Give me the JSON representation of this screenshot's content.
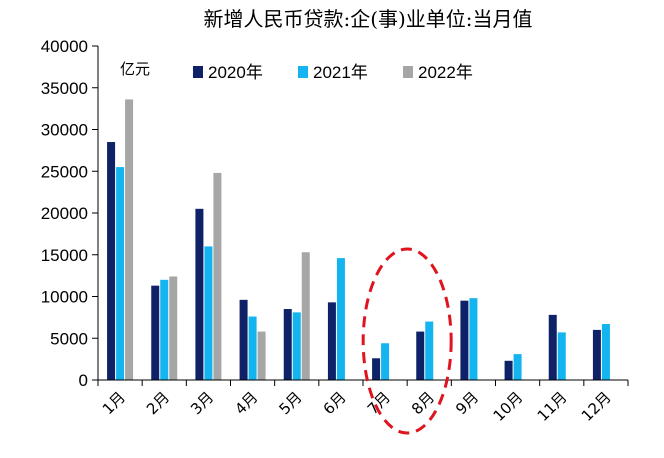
{
  "chart_data": {
    "type": "bar",
    "title": "新增人民币贷款:企(事)业单位:当月值",
    "unit_label": "亿元",
    "categories": [
      "1月",
      "2月",
      "3月",
      "4月",
      "5月",
      "6月",
      "7月",
      "8月",
      "9月",
      "10月",
      "11月",
      "12月"
    ],
    "series": [
      {
        "name": "2020年",
        "color": "#0f2167",
        "values": [
          28500,
          11300,
          20500,
          9600,
          8500,
          9300,
          2600,
          5800,
          9500,
          2300,
          7800,
          6000
        ]
      },
      {
        "name": "2021年",
        "color": "#14b4f0",
        "values": [
          25500,
          12000,
          16000,
          7600,
          8100,
          14600,
          4400,
          7000,
          9800,
          3100,
          5700,
          6700
        ]
      },
      {
        "name": "2022年",
        "color": "#a6a6a6",
        "values": [
          33600,
          12400,
          24800,
          5800,
          15300,
          null,
          null,
          null,
          null,
          null,
          null,
          null
        ]
      }
    ],
    "ylim": [
      0,
      40000
    ],
    "yticks": [
      0,
      5000,
      10000,
      15000,
      20000,
      25000,
      30000,
      35000,
      40000
    ],
    "legend_position": "top",
    "grid": false,
    "annotation": {
      "shape": "dashed-ellipse",
      "color": "#e0141e",
      "around": [
        "7月",
        "8月"
      ]
    }
  }
}
